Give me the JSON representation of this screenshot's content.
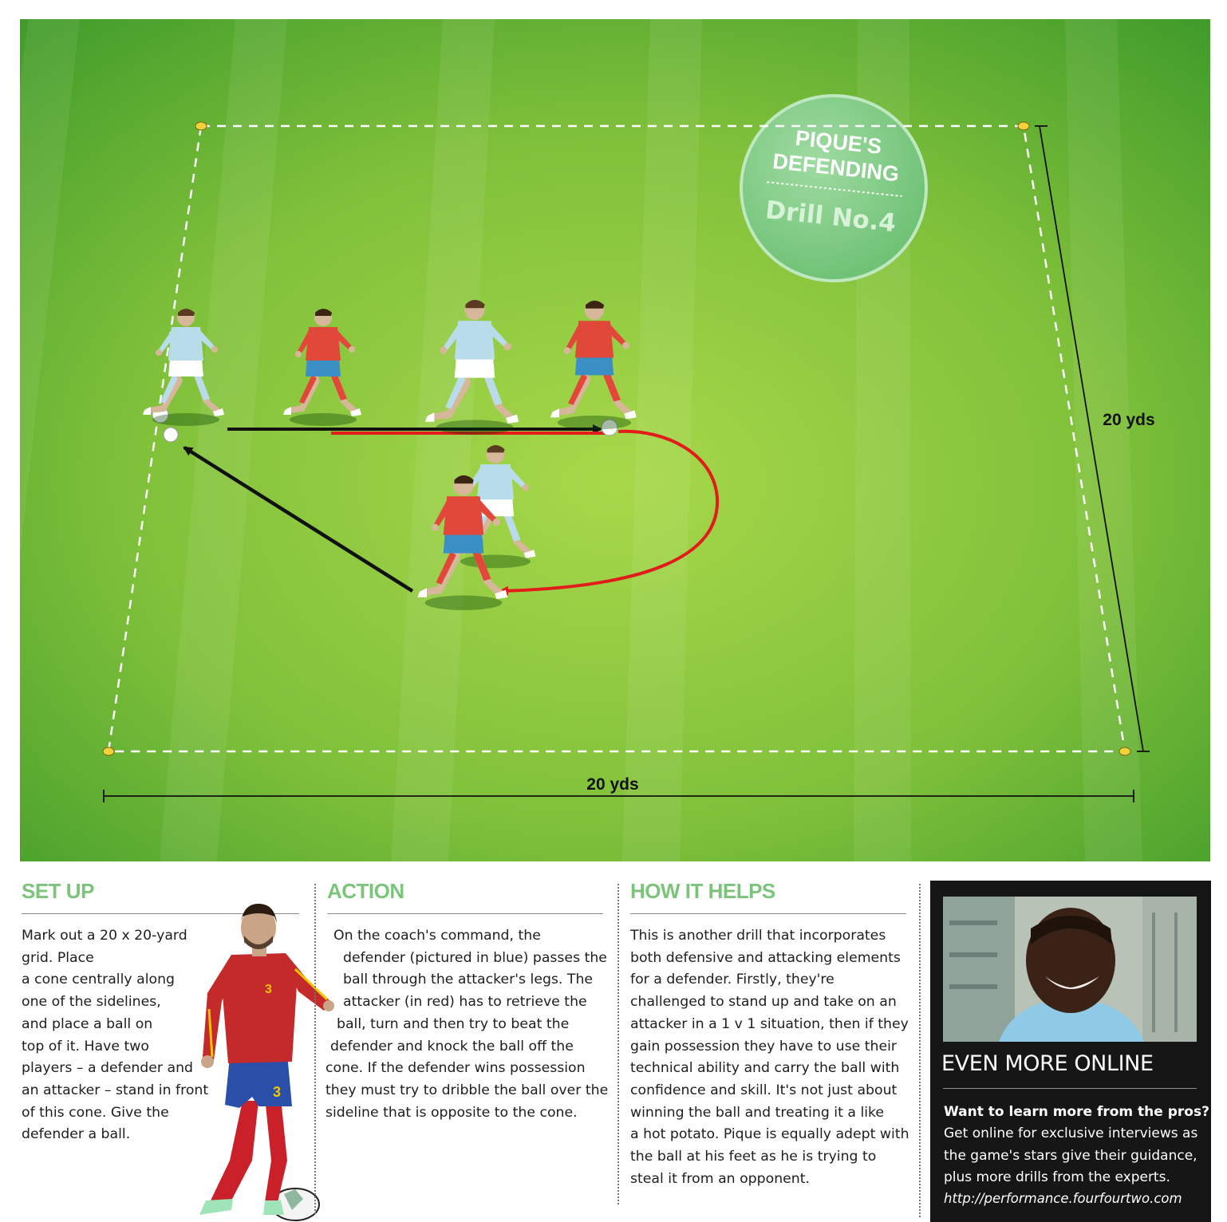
{
  "badge": {
    "line1": "PIQUE'S",
    "line2": "DEFENDING",
    "subtitle": "Drill No.4"
  },
  "dimensions": {
    "width_label": "20 yds",
    "height_label": "20 yds"
  },
  "setup": {
    "title": "SET UP",
    "lines": [
      "Mark out a 20 x 20-yard",
      "grid. Place",
      "a cone centrally along",
      "one of the sidelines,",
      "and place a ball on",
      "top of it. Have two",
      "players – a defender and",
      "an attacker – stand in front",
      "of this cone. Give the",
      "defender a ball."
    ]
  },
  "action": {
    "title": "ACTION",
    "lines": [
      "On the coach's command, the",
      "defender (pictured in blue) passes the",
      "ball through the attacker's legs. The",
      "attacker (in red) has to retrieve the",
      "ball, turn and then try to beat the",
      "defender and knock the ball off the",
      "cone. If the defender wins possession",
      "they must try to dribble the ball over the",
      "sideline that is opposite to the cone."
    ]
  },
  "helps": {
    "title": "HOW IT HELPS",
    "lines": [
      "This is another drill that incorporates",
      "both defensive and attacking elements",
      "for a defender. Firstly, they're",
      "challenged to stand up and take on an",
      "attacker in a 1 v 1 situation, then if they",
      "gain possession they have to use their",
      "technical ability and carry the ball with",
      "confidence and skill. It's not just about",
      "winning the ball and treating it a like",
      "a hot potato. Pique is equally adept with",
      "the ball at his feet as he is trying to",
      "steal it from an opponent."
    ]
  },
  "online": {
    "title": "EVEN MORE ONLINE",
    "lead": "Want to learn more from the pros?",
    "lines": [
      "Get online for exclusive interviews as",
      "the game's stars give their guidance,",
      "plus more drills from the experts."
    ],
    "url": "http://performance.fourfourtwo.com"
  },
  "player_photo": {
    "shirt_number": "3"
  },
  "colors": {
    "pitch_light": "#9acd3c",
    "pitch_dark": "#4aa82e",
    "badge_green": "#7ecb82",
    "section_title": "#7cc47c",
    "defender_shirt": "#b9dcea",
    "attacker_shirt": "#e2483a",
    "attacker_shorts": "#3a8fc4",
    "arrow_black": "#111111",
    "arrow_red": "#e21b1b",
    "cone_yellow": "#f2d23b",
    "online_bg": "#161616"
  },
  "icons": {
    "pitch_cones": "cone-icon",
    "balls": "ball-icon",
    "players": "player-figure"
  }
}
